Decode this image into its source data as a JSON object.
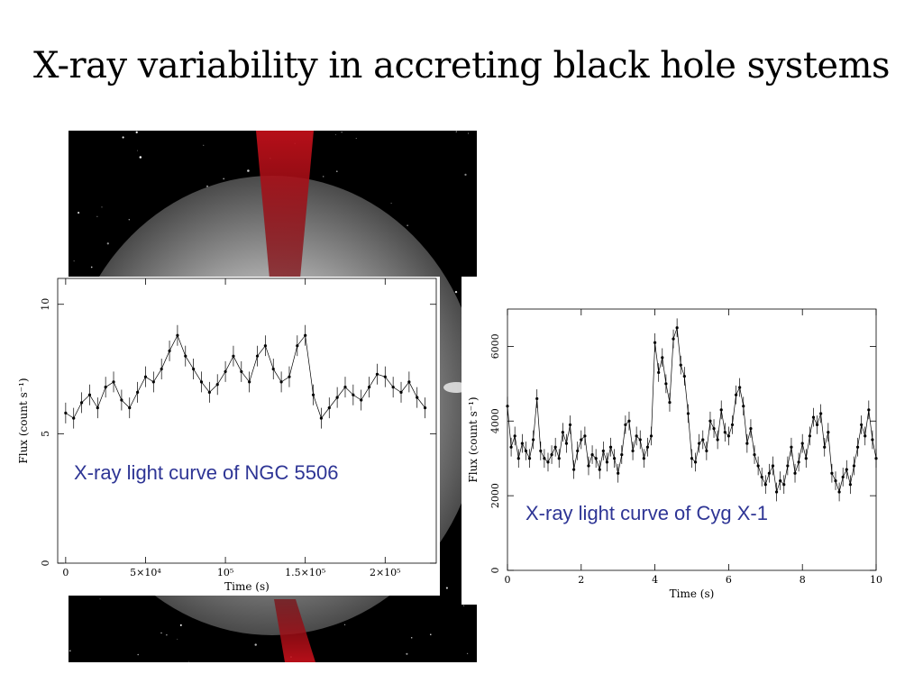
{
  "slide": {
    "title": "X-ray variability in accreting black hole systems"
  },
  "captions": {
    "ngc": "X-ray light curve of NGC 5506",
    "cyg": "X-ray light curve of Cyg X-1"
  },
  "colors": {
    "caption": "#2e3595",
    "jet": "#c0101a",
    "disk": "#d8d8d8"
  },
  "chart_data": [
    {
      "type": "scatter",
      "name": "NGC 5506",
      "xlabel": "Time (s)",
      "ylabel": "Flux (count s⁻¹)",
      "xlim": [
        -5000,
        232000
      ],
      "ylim": [
        0,
        11
      ],
      "xticks": [
        {
          "v": 0,
          "label": "0"
        },
        {
          "v": 50000,
          "label": "5×10⁴"
        },
        {
          "v": 100000,
          "label": "10⁵"
        },
        {
          "v": 150000,
          "label": "1.5×10⁵"
        },
        {
          "v": 200000,
          "label": "2×10⁵"
        }
      ],
      "yticks": [
        {
          "v": 0,
          "label": "0"
        },
        {
          "v": 5,
          "label": "5"
        },
        {
          "v": 10,
          "label": "10"
        }
      ],
      "err": 0.4,
      "x": [
        0,
        5000,
        10000,
        15000,
        20000,
        25000,
        30000,
        35000,
        40000,
        45000,
        50000,
        55000,
        60000,
        65000,
        70000,
        75000,
        80000,
        85000,
        90000,
        95000,
        100000,
        105000,
        110000,
        115000,
        120000,
        125000,
        130000,
        135000,
        140000,
        145000,
        150000,
        155000,
        160000,
        165000,
        170000,
        175000,
        180000,
        185000,
        190000,
        195000,
        200000,
        205000,
        210000,
        215000,
        220000,
        225000
      ],
      "y": [
        5.8,
        5.6,
        6.2,
        6.5,
        6.0,
        6.8,
        7.0,
        6.3,
        6.0,
        6.6,
        7.2,
        7.0,
        7.5,
        8.2,
        8.8,
        8.0,
        7.5,
        7.0,
        6.6,
        6.9,
        7.4,
        8.0,
        7.4,
        7.0,
        8.0,
        8.4,
        7.5,
        7.0,
        7.2,
        8.4,
        8.8,
        6.5,
        5.6,
        6.0,
        6.4,
        6.8,
        6.5,
        6.3,
        6.8,
        7.3,
        7.2,
        6.8,
        6.6,
        7.0,
        6.4,
        6.0
      ]
    },
    {
      "type": "scatter",
      "name": "Cyg X-1",
      "xlabel": "Time (s)",
      "ylabel": "Flux (count s⁻¹)",
      "xlim": [
        0,
        10
      ],
      "ylim": [
        0,
        7000
      ],
      "xticks": [
        {
          "v": 0,
          "label": "0"
        },
        {
          "v": 2,
          "label": "2"
        },
        {
          "v": 4,
          "label": "4"
        },
        {
          "v": 6,
          "label": "6"
        },
        {
          "v": 8,
          "label": "8"
        },
        {
          "v": 10,
          "label": "10"
        }
      ],
      "yticks": [
        {
          "v": 0,
          "label": "0"
        },
        {
          "v": 2000,
          "label": "2000"
        },
        {
          "v": 4000,
          "label": "4000"
        },
        {
          "v": 6000,
          "label": "6000"
        }
      ],
      "err": 250,
      "x": [
        0.0,
        0.1,
        0.2,
        0.3,
        0.4,
        0.5,
        0.6,
        0.7,
        0.8,
        0.9,
        1.0,
        1.1,
        1.2,
        1.3,
        1.4,
        1.5,
        1.6,
        1.7,
        1.8,
        1.9,
        2.0,
        2.1,
        2.2,
        2.3,
        2.4,
        2.5,
        2.6,
        2.7,
        2.8,
        2.9,
        3.0,
        3.1,
        3.2,
        3.3,
        3.4,
        3.5,
        3.6,
        3.7,
        3.8,
        3.9,
        4.0,
        4.1,
        4.2,
        4.3,
        4.4,
        4.5,
        4.6,
        4.7,
        4.8,
        4.9,
        5.0,
        5.1,
        5.2,
        5.3,
        5.4,
        5.5,
        5.6,
        5.7,
        5.8,
        5.9,
        6.0,
        6.1,
        6.2,
        6.3,
        6.4,
        6.5,
        6.6,
        6.7,
        6.8,
        6.9,
        7.0,
        7.1,
        7.2,
        7.3,
        7.4,
        7.5,
        7.6,
        7.7,
        7.8,
        7.9,
        8.0,
        8.1,
        8.2,
        8.3,
        8.4,
        8.5,
        8.6,
        8.7,
        8.8,
        8.9,
        9.0,
        9.1,
        9.2,
        9.3,
        9.4,
        9.5,
        9.6,
        9.7,
        9.8,
        9.9,
        10.0
      ],
      "y": [
        4400,
        3300,
        3600,
        3000,
        3400,
        3200,
        3000,
        3500,
        4600,
        3200,
        3000,
        2900,
        3100,
        3300,
        3000,
        3700,
        3400,
        3900,
        2700,
        3200,
        3500,
        3600,
        2800,
        3100,
        3000,
        2700,
        3200,
        2900,
        3300,
        3000,
        2600,
        3100,
        3900,
        4000,
        3200,
        3600,
        3500,
        3000,
        3300,
        3600,
        6100,
        5300,
        5700,
        5000,
        4500,
        6200,
        6500,
        5500,
        5200,
        4200,
        3000,
        2900,
        3400,
        3500,
        3200,
        4000,
        3800,
        3500,
        4300,
        3700,
        3600,
        3900,
        4700,
        4900,
        4400,
        3400,
        3800,
        3100,
        2800,
        2500,
        2300,
        2600,
        2800,
        2100,
        2400,
        2300,
        2800,
        3300,
        2600,
        2900,
        3400,
        3000,
        3600,
        4100,
        3900,
        4200,
        3300,
        3700,
        2600,
        2400,
        2100,
        2500,
        2700,
        2300,
        2800,
        3300,
        3900,
        3600,
        4300,
        3500,
        3000
      ]
    }
  ]
}
